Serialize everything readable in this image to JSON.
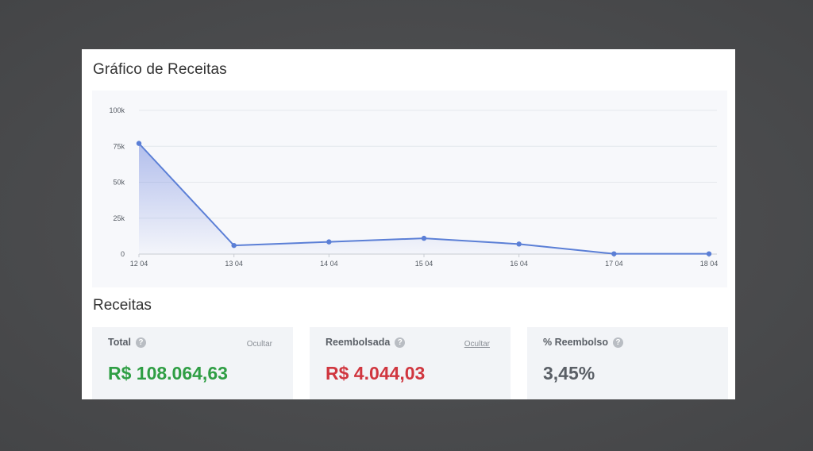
{
  "panel": {
    "title": "Gráfico de Receitas"
  },
  "chart_data": {
    "type": "area",
    "categories": [
      "12 04",
      "13 04",
      "14 04",
      "15 04",
      "16 04",
      "17 04",
      "18 04"
    ],
    "values": [
      77000,
      6000,
      8500,
      11000,
      7000,
      200,
      200
    ],
    "y_ticks": [
      0,
      25000,
      50000,
      75000,
      100000
    ],
    "y_tick_labels": [
      "0",
      "25k",
      "50k",
      "75k",
      "100k"
    ],
    "ylim": [
      0,
      100000
    ],
    "grid": true,
    "line_color": "#5b7fd6",
    "fill_color": "#7a8fe0"
  },
  "revenue_section": {
    "title": "Receitas",
    "cards": [
      {
        "label": "Total",
        "link": "Ocultar",
        "value": "R$ 108.064,63",
        "value_color": "#2f9e44"
      },
      {
        "label": "Reembolsada",
        "link": "Ocultar",
        "value": "R$ 4.044,03",
        "value_color": "#d0363f"
      },
      {
        "label": "% Reembolso",
        "link": "",
        "value": "3,45%",
        "value_color": "#5a5f66"
      }
    ],
    "help_icon": "?"
  }
}
